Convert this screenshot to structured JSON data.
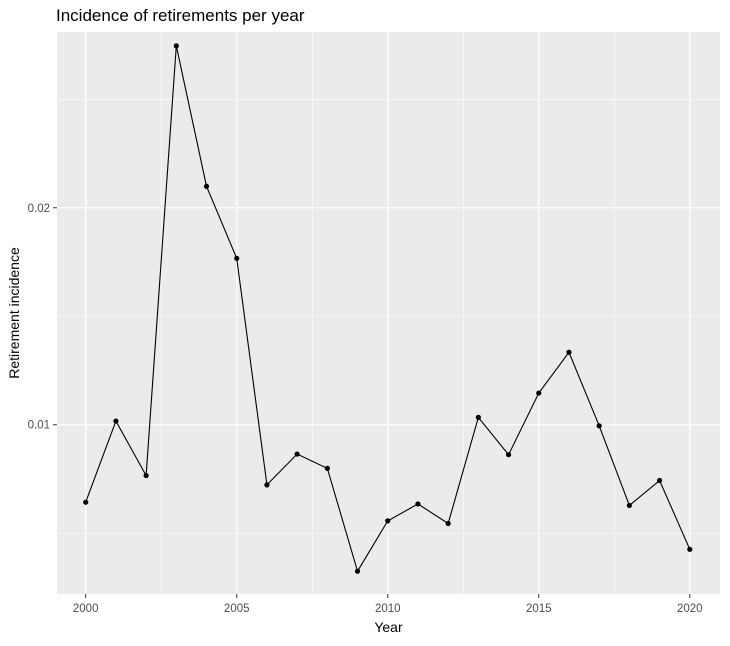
{
  "chart_data": {
    "type": "line",
    "title": "Incidence of retirements per year",
    "xlabel": "Year",
    "ylabel": "Retirement incidence",
    "x": [
      2000,
      2001,
      2002,
      2003,
      2004,
      2005,
      2006,
      2007,
      2008,
      2009,
      2010,
      2011,
      2012,
      2013,
      2014,
      2015,
      2016,
      2017,
      2018,
      2019,
      2020
    ],
    "series": [
      {
        "values": [
          0.00643,
          0.01017,
          0.00766,
          0.02746,
          0.02099,
          0.01767,
          0.00723,
          0.00865,
          0.00799,
          0.00325,
          0.00557,
          0.00635,
          0.00545,
          0.01034,
          0.00862,
          0.01146,
          0.01334,
          0.00995,
          0.00628,
          0.00743,
          0.00426
        ]
      }
    ],
    "xlim": [
      1999.05,
      2021.0
    ],
    "ylim": [
      0.0022,
      0.0281
    ],
    "x_ticks": [
      2000,
      2005,
      2010,
      2015,
      2020
    ],
    "x_tick_labels": [
      "2000",
      "2005",
      "2010",
      "2015",
      "2020"
    ],
    "y_ticks": [
      0.01,
      0.02
    ],
    "y_tick_labels": [
      "0.01",
      "0.02"
    ],
    "grid": true,
    "colors": {
      "panel_background": "#EBEBEB",
      "grid": "#FFFFFF",
      "line": "#000000",
      "point": "#000000",
      "axis_text": "#4D4D4D"
    }
  }
}
